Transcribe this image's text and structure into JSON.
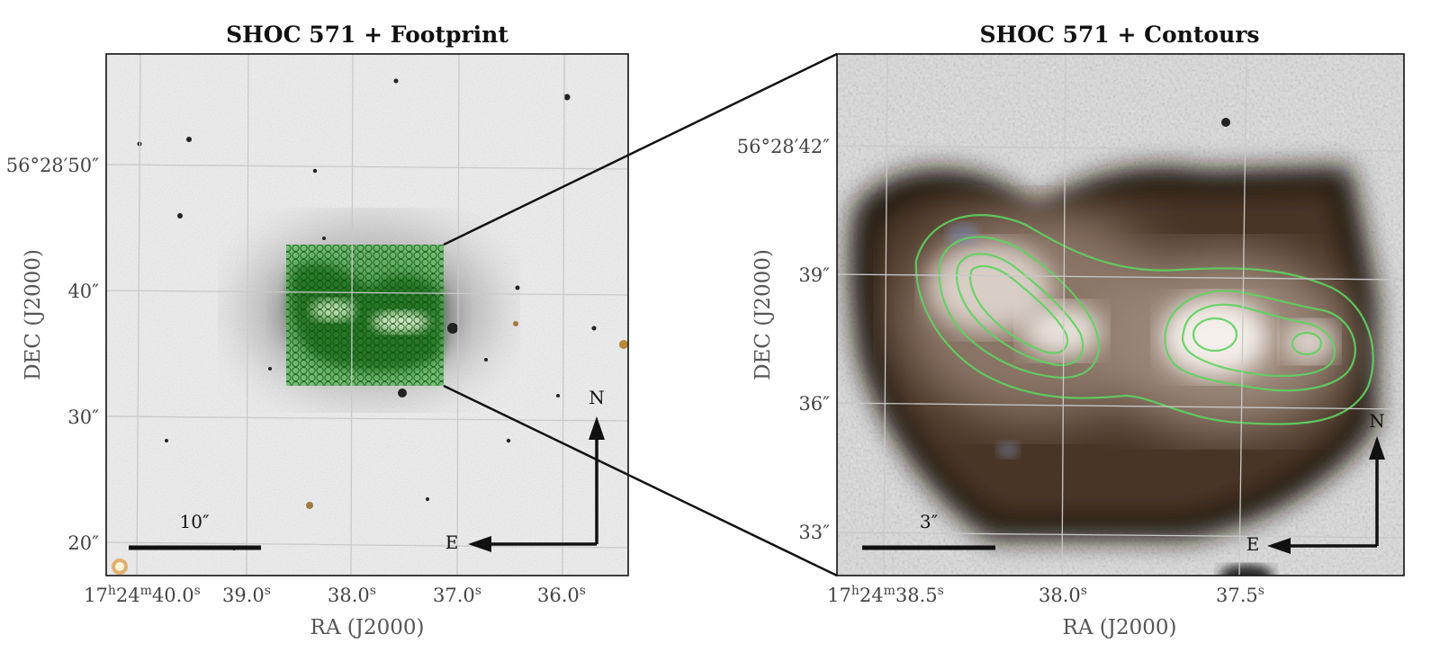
{
  "left_panel": {
    "title": "SHOC 571 + Footprint",
    "xlabel": "RA (J2000)",
    "ylabel": "DEC (J2000)",
    "ra_ticks": [
      {
        "main": "17",
        "sup1": "h",
        "mid": "24",
        "sup2": "m",
        "rest": "40.0",
        "sup3": "s"
      },
      {
        "rest": "39.0",
        "sup3": "s"
      },
      {
        "rest": "38.0",
        "sup3": "s"
      },
      {
        "rest": "37.0",
        "sup3": "s"
      },
      {
        "rest": "36.0",
        "sup3": "s"
      }
    ],
    "dec_ticks": [
      "56°28′50″",
      "40″",
      "30″",
      "20″"
    ],
    "scalebar_label": "10″",
    "compass": {
      "north": "N",
      "east": "E"
    }
  },
  "right_panel": {
    "title": "SHOC 571 + Contours",
    "xlabel": "RA (J2000)",
    "ylabel": "DEC (J2000)",
    "ra_ticks": [
      {
        "main": "17",
        "sup1": "h",
        "mid": "24",
        "sup2": "m",
        "rest": "38.5",
        "sup3": "s"
      },
      {
        "rest": "38.0",
        "sup3": "s"
      },
      {
        "rest": "37.5",
        "sup3": "s"
      }
    ],
    "dec_ticks": [
      "56°28′42″",
      "39″",
      "36″",
      "33″"
    ],
    "scalebar_label": "3″",
    "compass": {
      "north": "N",
      "east": "E"
    }
  },
  "colors": {
    "footprint_green": "#1f8a1f",
    "contour_green": "#5fd35f",
    "grid": "#c9c9c9"
  }
}
